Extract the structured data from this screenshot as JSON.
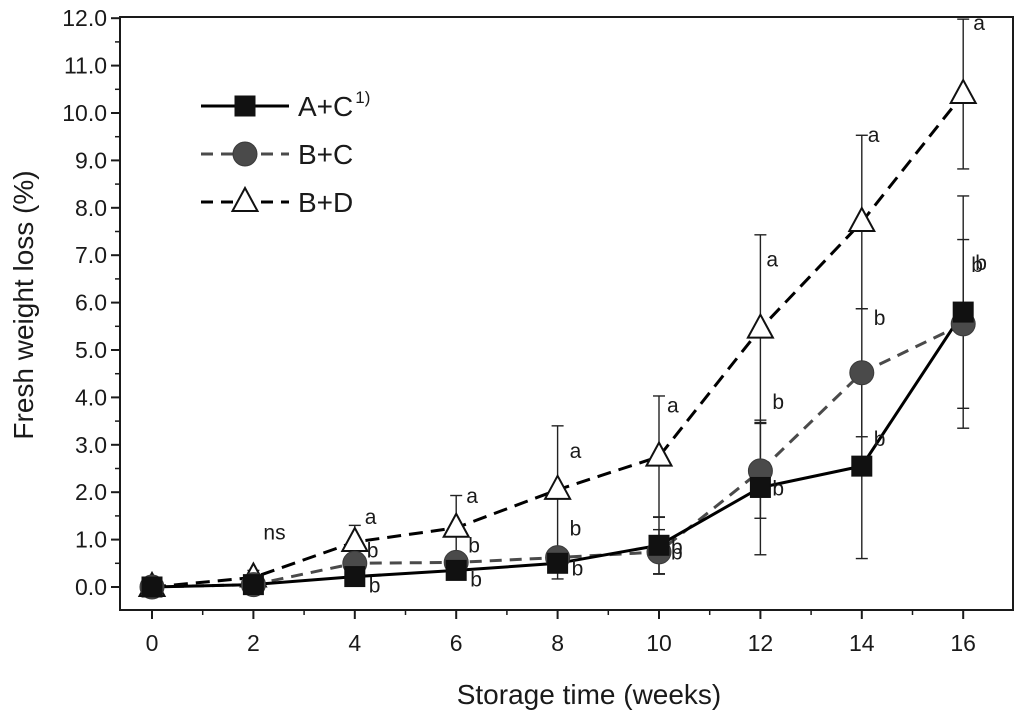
{
  "chart_data": {
    "type": "line",
    "title": "",
    "xlabel": "Storage time (weeks)",
    "ylabel": "Fresh weight loss (%)",
    "xlim": [
      -1,
      17
    ],
    "ylim": [
      -0.4,
      12.0
    ],
    "x_ticks": [
      "0",
      "2",
      "4",
      "6",
      "8",
      "10",
      "12",
      "14",
      "16"
    ],
    "y_ticks": [
      "0.0",
      "1.0",
      "2.0",
      "3.0",
      "4.0",
      "5.0",
      "6.0",
      "7.0",
      "8.0",
      "9.0",
      "10.0",
      "11.0",
      "12.0"
    ],
    "x": [
      0,
      2,
      4,
      6,
      8,
      10,
      12,
      14,
      16
    ],
    "legend_position": "top-left",
    "series": [
      {
        "name": "A+C",
        "superscript": "1)",
        "marker": "square",
        "line_style": "solid",
        "color": "#000000",
        "values": [
          0.0,
          0.05,
          0.22,
          0.35,
          0.5,
          0.88,
          2.1,
          2.55,
          5.8
        ],
        "err": [
          0,
          0,
          0,
          0,
          0.33,
          0.6,
          1.42,
          1.95,
          2.45
        ],
        "labels": [
          "",
          "",
          "b",
          "b",
          "b",
          "b",
          "b",
          "b",
          "b"
        ]
      },
      {
        "name": "B+C",
        "marker": "circle",
        "line_style": "dashed",
        "color": "#4a4a4a",
        "values": [
          0.0,
          0.05,
          0.5,
          0.52,
          0.62,
          0.74,
          2.45,
          4.52,
          5.55
        ],
        "err": [
          0,
          0,
          0,
          0.1,
          0.1,
          0.47,
          1.0,
          1.35,
          1.78
        ],
        "labels": [
          "",
          "",
          "b",
          "b",
          "b",
          "b",
          "b",
          "b",
          "b"
        ]
      },
      {
        "name": "B+D",
        "marker": "triangle",
        "line_style": "dashed",
        "color": "#000000",
        "values": [
          0.0,
          0.2,
          0.95,
          1.25,
          2.05,
          2.75,
          5.45,
          7.7,
          10.4
        ],
        "err": [
          0,
          0.15,
          0.35,
          0.68,
          1.35,
          1.28,
          1.98,
          1.83,
          1.58
        ],
        "labels": [
          "",
          "ns",
          "a",
          "a",
          "a",
          "a",
          "a",
          "a",
          "a"
        ]
      }
    ]
  }
}
